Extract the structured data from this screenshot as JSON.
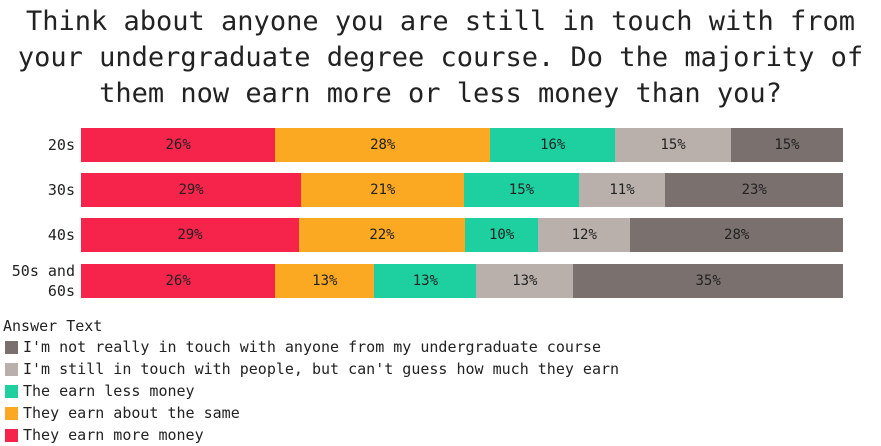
{
  "chart_data": {
    "type": "stacked-bar-horizontal",
    "title": "Think about anyone you are still in touch with from your undergraduate degree course. Do the majority of them now earn more or less money than you?",
    "categories": [
      "20s",
      "30s",
      "40s",
      "50s and 60s"
    ],
    "xlim": [
      0,
      100
    ],
    "legend_title": "Answer Text",
    "legend_position": "bottom-left",
    "series": [
      {
        "name": "They earn more money",
        "color": "#f6244b",
        "values": [
          25.5,
          28.9,
          28.6,
          25.5
        ],
        "value_labels": [
          "26%",
          "29%",
          "29%",
          "26%"
        ]
      },
      {
        "name": "They earn about the same",
        "color": "#fba823",
        "values": [
          28.2,
          21.4,
          21.8,
          13.0
        ],
        "value_labels": [
          "28%",
          "21%",
          "22%",
          "13%"
        ]
      },
      {
        "name": "The earn less money",
        "color": "#1ecfa0",
        "values": [
          16.4,
          15.0,
          9.6,
          13.4
        ],
        "value_labels": [
          "16%",
          "15%",
          "10%",
          "13%"
        ]
      },
      {
        "name": "I'm still in touch with people, but can't guess how much they earn",
        "color": "#b9b0ac",
        "values": [
          15.2,
          11.4,
          12.1,
          12.7
        ],
        "value_labels": [
          "15%",
          "11%",
          "12%",
          "13%"
        ]
      },
      {
        "name": "I'm not really in touch with anyone from my undergraduate course",
        "color": "#7a706d",
        "values": [
          14.7,
          23.3,
          27.9,
          35.4
        ],
        "value_labels": [
          "15%",
          "23%",
          "28%",
          "35%"
        ]
      }
    ]
  }
}
